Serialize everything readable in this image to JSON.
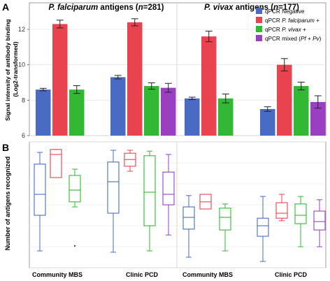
{
  "panels": {
    "a": {
      "letter": "A"
    },
    "b": {
      "letter": "B"
    }
  },
  "legend": {
    "items": [
      {
        "label": "qPCR Negative",
        "color": "#4a6bc4"
      },
      {
        "label": "qPCR P. falciparum +",
        "color": "#e8434f"
      },
      {
        "label": "qPCR P. vivax +",
        "color": "#33b835"
      },
      {
        "label": "qPCR mixed (Pf + Pv)",
        "color": "#9b3fc2"
      }
    ]
  },
  "chart_data": [
    {
      "type": "bar",
      "panel": "A",
      "ylabel": "Signal intensity of antibody binding (Log2-transformed)",
      "ylim": [
        6,
        13.5
      ],
      "yticks": [
        6,
        8,
        10,
        12
      ],
      "grid": true,
      "legend_position": "top-right",
      "groups": [
        {
          "title": "P. falciparum antigens (n=281)",
          "categories": [
            "Community MBS",
            "Clinic PCD"
          ],
          "series": [
            {
              "name": "qPCR Negative",
              "color": "#4a6bc4",
              "values": [
                8.6,
                9.3
              ],
              "errors": [
                0.07,
                0.1
              ]
            },
            {
              "name": "qPCR P. falciparum +",
              "color": "#e8434f",
              "values": [
                12.3,
                12.4
              ],
              "errors": [
                0.22,
                0.2
              ]
            },
            {
              "name": "qPCR P. vivax +",
              "color": "#33b835",
              "values": [
                8.6,
                8.8
              ],
              "errors": [
                0.22,
                0.18
              ]
            },
            {
              "name": "qPCR mixed (Pf + Pv)",
              "color": "#9b3fc2",
              "values": [
                null,
                8.7
              ],
              "errors": [
                null,
                0.25
              ]
            }
          ]
        },
        {
          "title": "P. vivax antigens (n=177)",
          "categories": [
            "Community MBS",
            "Clinic PCD"
          ],
          "series": [
            {
              "name": "qPCR Negative",
              "color": "#4a6bc4",
              "values": [
                8.1,
                7.5
              ],
              "errors": [
                0.07,
                0.13
              ]
            },
            {
              "name": "qPCR P. falciparum +",
              "color": "#e8434f",
              "values": [
                11.6,
                10.0
              ],
              "errors": [
                0.3,
                0.35
              ]
            },
            {
              "name": "qPCR P. vivax +",
              "color": "#33b835",
              "values": [
                8.1,
                8.8
              ],
              "errors": [
                0.25,
                0.22
              ]
            },
            {
              "name": "qPCR mixed (Pf + Pv)",
              "color": "#9b3fc2",
              "values": [
                null,
                7.9
              ],
              "errors": [
                null,
                0.35
              ]
            }
          ]
        }
      ]
    },
    {
      "type": "box",
      "panel": "B",
      "ylabel": "Number of antigens recognized",
      "ylim": [
        0,
        300
      ],
      "yticks": [
        0,
        50,
        100,
        150,
        200,
        250,
        300
      ],
      "grid": true,
      "categories": [
        "Community MBS",
        "Clinic PCD",
        "Community MBS",
        "Clinic PCD"
      ],
      "groups": [
        {
          "label": "Community MBS",
          "boxes": [
            {
              "series": "qPCR Negative",
              "color": "#4a6bc4",
              "min": 40,
              "q1": 125,
              "median": 175,
              "q3": 247,
              "max": 275
            },
            {
              "series": "qPCR P. falciparum +",
              "color": "#e8434f",
              "min": 215,
              "q1": 215,
              "median": 270,
              "q3": 282,
              "max": 282
            },
            {
              "series": "qPCR P. vivax +",
              "color": "#33b835",
              "min": 145,
              "q1": 157,
              "median": 185,
              "q3": 220,
              "max": 235,
              "outliers": [
                52
              ]
            }
          ]
        },
        {
          "label": "Clinic PCD",
          "boxes": [
            {
              "series": "qPCR Negative",
              "color": "#4a6bc4",
              "min": 37,
              "q1": 130,
              "median": 205,
              "q3": 252,
              "max": 280
            },
            {
              "series": "qPCR P. falciparum +",
              "color": "#e8434f",
              "min": 230,
              "q1": 242,
              "median": 258,
              "q3": 273,
              "max": 280
            },
            {
              "series": "qPCR P. vivax +",
              "color": "#33b835",
              "min": 40,
              "q1": 100,
              "median": 180,
              "q3": 267,
              "max": 278
            },
            {
              "series": "qPCR mixed (Pf + Pv)",
              "color": "#9b3fc2",
              "min": 78,
              "q1": 150,
              "median": 175,
              "q3": 228,
              "max": 270
            }
          ]
        },
        {
          "label": "Community MBS",
          "boxes": [
            {
              "series": "qPCR Negative",
              "color": "#4a6bc4",
              "min": 25,
              "q1": 92,
              "median": 120,
              "q3": 145,
              "max": 172
            },
            {
              "series": "qPCR P. falciparum +",
              "color": "#e8434f",
              "min": 140,
              "q1": 140,
              "median": 157,
              "q3": 175,
              "max": 175
            },
            {
              "series": "qPCR P. vivax +",
              "color": "#33b835",
              "min": 40,
              "q1": 90,
              "median": 120,
              "q3": 142,
              "max": 152
            }
          ]
        },
        {
          "label": "Clinic PCD",
          "boxes": [
            {
              "series": "qPCR Negative",
              "color": "#4a6bc4",
              "min": 15,
              "q1": 75,
              "median": 100,
              "q3": 118,
              "max": 170
            },
            {
              "series": "qPCR P. falciparum +",
              "color": "#e8434f",
              "min": 112,
              "q1": 118,
              "median": 130,
              "q3": 155,
              "max": 175
            },
            {
              "series": "qPCR P. vivax +",
              "color": "#33b835",
              "min": 50,
              "q1": 105,
              "median": 125,
              "q3": 152,
              "max": 170
            },
            {
              "series": "qPCR mixed (Pf + Pv)",
              "color": "#9b3fc2",
              "min": 50,
              "q1": 90,
              "median": 110,
              "q3": 135,
              "max": 162
            }
          ]
        }
      ]
    }
  ]
}
